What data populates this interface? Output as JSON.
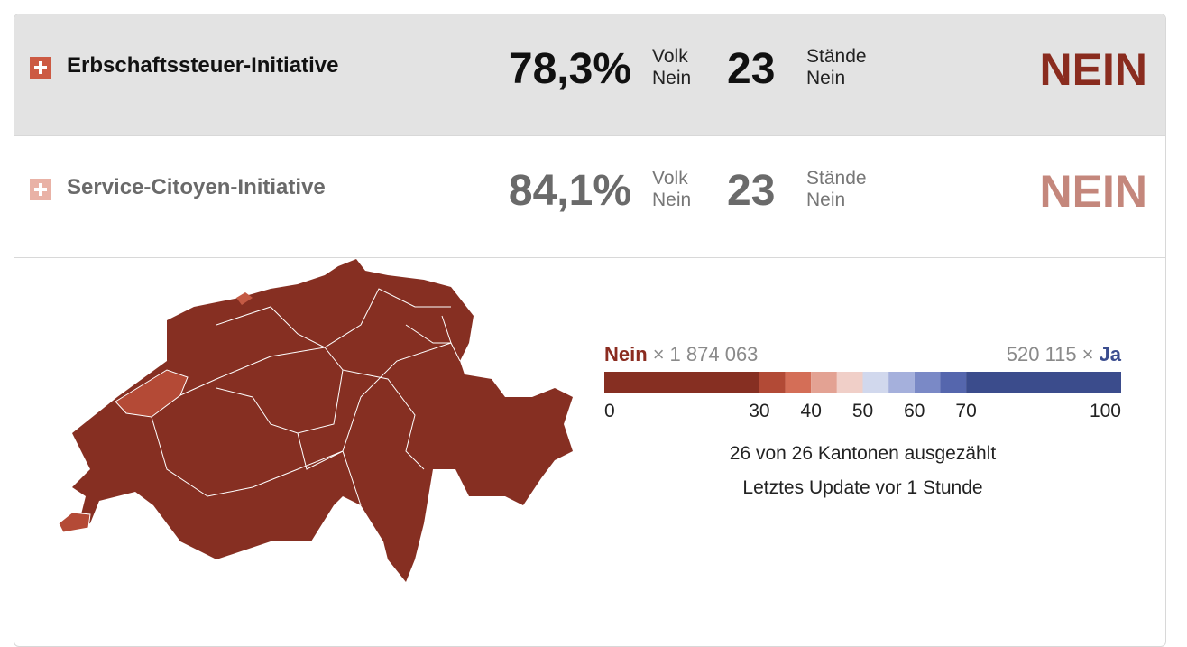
{
  "initiatives": [
    {
      "name": "Erbschaftssteuer-Initiative",
      "volk_percent": "78,3%",
      "volk_label": "Volk",
      "volk_result": "Nein",
      "staende": "23",
      "staende_label": "Stände",
      "staende_result": "Nein",
      "result": "NEIN"
    },
    {
      "name": "Service-Citoyen-Initiative",
      "volk_percent": "84,1%",
      "volk_label": "Volk",
      "volk_result": "Nein",
      "staende": "23",
      "staende_label": "Stände",
      "staende_result": "Nein",
      "result": "NEIN"
    }
  ],
  "legend": {
    "nein_label": "Nein",
    "times": "×",
    "nein_count": "1 874 063",
    "ja_count": "520 115",
    "ja_label": "Ja",
    "ticks": [
      0,
      30,
      40,
      50,
      60,
      70,
      100
    ],
    "segments": [
      {
        "from": 0,
        "to": 30,
        "color": "#862f22"
      },
      {
        "from": 30,
        "to": 35,
        "color": "#b24a36"
      },
      {
        "from": 35,
        "to": 40,
        "color": "#d46e57"
      },
      {
        "from": 40,
        "to": 45,
        "color": "#e3a293"
      },
      {
        "from": 45,
        "to": 50,
        "color": "#f0cfc8"
      },
      {
        "from": 50,
        "to": 55,
        "color": "#d1d8ed"
      },
      {
        "from": 55,
        "to": 60,
        "color": "#a5b0dc"
      },
      {
        "from": 60,
        "to": 65,
        "color": "#7a89c6"
      },
      {
        "from": 65,
        "to": 70,
        "color": "#5566ad"
      },
      {
        "from": 70,
        "to": 100,
        "color": "#3b4c8c"
      }
    ]
  },
  "status": {
    "counted": "26 von 26 Kantonen ausgezählt",
    "updated": "Letztes Update vor 1 Stunde"
  }
}
